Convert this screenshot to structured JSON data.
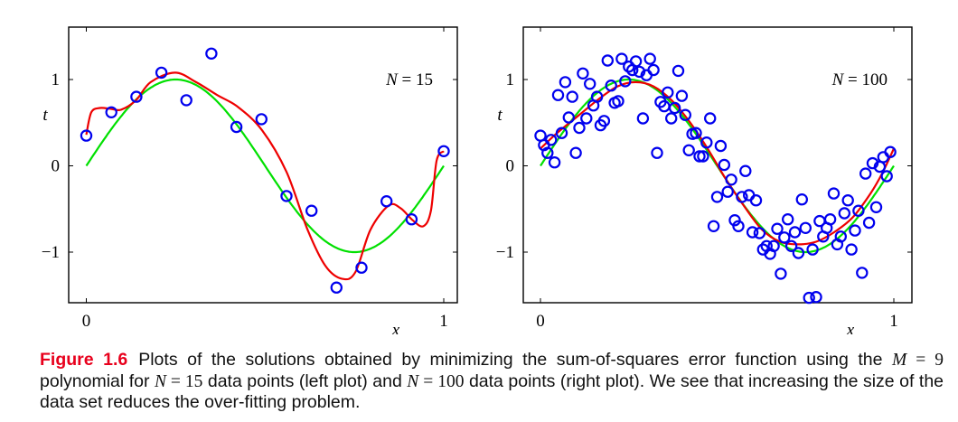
{
  "chart_data": [
    {
      "type": "scatter",
      "title": "",
      "annotation": "N = 15",
      "annotation_parts": {
        "var": "N",
        "op": "=",
        "value": "15"
      },
      "xlabel": "x",
      "ylabel": "t",
      "xlim": [
        -0.05,
        1.05
      ],
      "ylim": [
        -1.6,
        1.6
      ],
      "xticks": [
        0,
        1
      ],
      "xtick_labels": [
        "0",
        "1"
      ],
      "yticks": [
        -1,
        0,
        1
      ],
      "ytick_labels": [
        "−1",
        "0",
        "1"
      ],
      "grid": false,
      "colors": {
        "points": "#0000ee",
        "true_curve": "#00e000",
        "fit_curve": "#ee0000"
      },
      "series": [
        {
          "name": "data points",
          "kind": "scatter",
          "x": [
            0.0,
            0.07,
            0.14,
            0.21,
            0.28,
            0.35,
            0.42,
            0.49,
            0.56,
            0.63,
            0.7,
            0.77,
            0.84,
            0.91,
            1.0
          ],
          "y": [
            0.35,
            0.62,
            0.8,
            1.08,
            0.76,
            1.3,
            0.45,
            0.54,
            -0.35,
            -0.52,
            -1.41,
            -1.18,
            -0.41,
            -0.62,
            0.17
          ]
        },
        {
          "name": "sin(2πx)",
          "kind": "function",
          "function": "sin(2*pi*x)",
          "x_range": [
            0,
            1
          ]
        },
        {
          "name": "M = 9 polynomial fit",
          "kind": "line",
          "x": [
            0.0,
            0.014,
            0.038,
            0.069,
            0.097,
            0.139,
            0.18,
            0.248,
            0.307,
            0.366,
            0.425,
            0.492,
            0.56,
            0.619,
            0.669,
            0.716,
            0.753,
            0.795,
            0.846,
            0.879,
            0.913,
            0.943,
            0.964,
            0.98,
            1.0
          ],
          "y": [
            0.36,
            0.62,
            0.67,
            0.66,
            0.65,
            0.76,
            0.97,
            1.08,
            0.97,
            0.82,
            0.68,
            0.41,
            -0.07,
            -0.74,
            -1.16,
            -1.31,
            -1.23,
            -0.74,
            -0.46,
            -0.49,
            -0.63,
            -0.7,
            -0.52,
            0.06,
            0.17
          ]
        }
      ]
    },
    {
      "type": "scatter",
      "title": "",
      "annotation": "N = 100",
      "annotation_parts": {
        "var": "N",
        "op": "=",
        "value": "100"
      },
      "xlabel": "x",
      "ylabel": "t",
      "xlim": [
        -0.05,
        1.05
      ],
      "ylim": [
        -1.6,
        1.6
      ],
      "xticks": [
        0,
        1
      ],
      "xtick_labels": [
        "0",
        "1"
      ],
      "yticks": [
        -1,
        0,
        1
      ],
      "ytick_labels": [
        "−1",
        "0",
        "1"
      ],
      "grid": false,
      "colors": {
        "points": "#0000ee",
        "true_curve": "#00e000",
        "fit_curve": "#ee0000"
      },
      "series": [
        {
          "name": "data points",
          "kind": "scatter",
          "x": [
            0.0,
            0.01,
            0.03,
            0.02,
            0.04,
            0.05,
            0.07,
            0.06,
            0.08,
            0.09,
            0.1,
            0.11,
            0.12,
            0.13,
            0.14,
            0.15,
            0.16,
            0.17,
            0.18,
            0.19,
            0.2,
            0.21,
            0.22,
            0.23,
            0.24,
            0.25,
            0.26,
            0.27,
            0.28,
            0.29,
            0.3,
            0.31,
            0.32,
            0.33,
            0.34,
            0.35,
            0.36,
            0.37,
            0.38,
            0.39,
            0.4,
            0.41,
            0.42,
            0.43,
            0.44,
            0.45,
            0.46,
            0.47,
            0.48,
            0.49,
            0.5,
            0.51,
            0.52,
            0.53,
            0.54,
            0.55,
            0.56,
            0.57,
            0.58,
            0.59,
            0.6,
            0.61,
            0.62,
            0.63,
            0.64,
            0.65,
            0.66,
            0.67,
            0.68,
            0.69,
            0.7,
            0.71,
            0.72,
            0.73,
            0.74,
            0.75,
            0.76,
            0.77,
            0.78,
            0.79,
            0.8,
            0.81,
            0.82,
            0.83,
            0.84,
            0.85,
            0.86,
            0.87,
            0.88,
            0.89,
            0.9,
            0.91,
            0.92,
            0.93,
            0.94,
            0.95,
            0.96,
            0.97,
            0.98,
            0.99
          ],
          "y": [
            0.35,
            0.24,
            0.3,
            0.15,
            0.04,
            0.82,
            0.97,
            0.38,
            0.56,
            0.8,
            0.15,
            0.44,
            1.07,
            0.55,
            0.95,
            0.7,
            0.8,
            0.47,
            0.52,
            1.22,
            0.93,
            0.73,
            0.75,
            1.24,
            0.98,
            1.15,
            1.11,
            1.21,
            1.09,
            0.55,
            1.05,
            1.24,
            1.11,
            0.15,
            0.74,
            0.69,
            0.85,
            0.55,
            0.67,
            1.1,
            0.81,
            0.59,
            0.18,
            0.37,
            0.38,
            0.11,
            0.11,
            0.27,
            0.55,
            -0.7,
            -0.36,
            0.23,
            0.01,
            -0.3,
            -0.16,
            -0.63,
            -0.7,
            -0.36,
            -0.06,
            -0.34,
            -0.77,
            -0.4,
            -0.78,
            -0.97,
            -0.93,
            -1.02,
            -0.93,
            -0.73,
            -1.25,
            -0.83,
            -0.62,
            -0.93,
            -0.77,
            -1.01,
            -0.39,
            -0.72,
            -1.53,
            -0.97,
            -1.52,
            -0.64,
            -0.82,
            -0.72,
            -0.62,
            -0.32,
            -0.91,
            -0.82,
            -0.55,
            -0.4,
            -0.97,
            -0.75,
            -0.52,
            -1.24,
            -0.09,
            -0.66,
            0.03,
            -0.48,
            -0.01,
            0.1,
            -0.12,
            0.16
          ]
        },
        {
          "name": "sin(2πx)",
          "kind": "function",
          "function": "sin(2*pi*x)",
          "x_range": [
            0,
            1
          ]
        },
        {
          "name": "M = 9 polynomial fit",
          "kind": "line",
          "x": [
            0.0,
            0.047,
            0.107,
            0.167,
            0.218,
            0.269,
            0.32,
            0.371,
            0.422,
            0.473,
            0.524,
            0.575,
            0.627,
            0.678,
            0.729,
            0.78,
            0.831,
            0.883,
            0.934,
            0.968,
            1.0
          ],
          "y": [
            0.2,
            0.38,
            0.58,
            0.78,
            0.92,
            0.97,
            0.92,
            0.76,
            0.51,
            0.2,
            -0.15,
            -0.46,
            -0.74,
            -0.88,
            -0.91,
            -0.88,
            -0.77,
            -0.6,
            -0.32,
            -0.08,
            0.2
          ]
        }
      ]
    }
  ],
  "caption": {
    "label": "Figure 1.6",
    "line1_a": "Plots of the solutions obtained by minimizing the sum-of-squares error function using the ",
    "line1_math_var": "M",
    "line1_math_eq": " = 9",
    "line2_a": " polynomial for ",
    "n1_var": "N",
    "n1_eq": " = 15",
    "line2_b": " data points (left plot) and ",
    "n2_var": "N",
    "n2_eq": " = 100",
    "line2_c": " data points (right plot). We see that increasing the size of the data set reduces the over-fitting problem."
  }
}
